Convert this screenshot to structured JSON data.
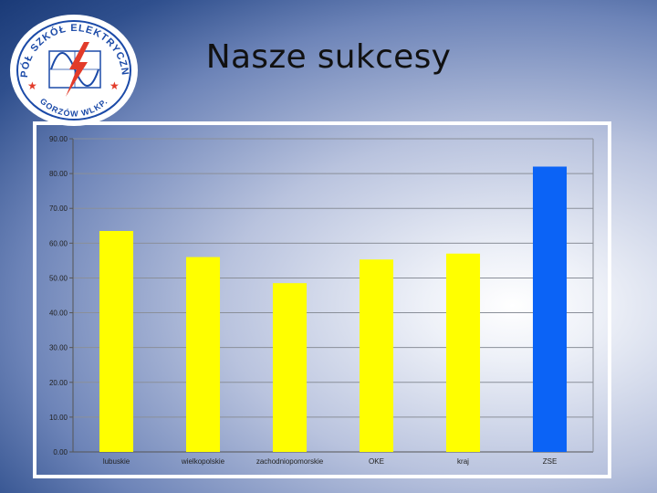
{
  "slide": {
    "title": "Nasze sukcesy",
    "logo_text": "ZESPÓŁ SZKÓŁ ELEKTRYCZNYCH",
    "logo_subtext": "GORZÓW WLKP."
  },
  "chart_data": {
    "type": "bar",
    "title": "",
    "xlabel": "",
    "ylabel": "",
    "categories": [
      "lubuskie",
      "wielkopolskie",
      "zachodniopomorskie",
      "OKE",
      "kraj",
      "ZSE"
    ],
    "values": [
      63.5,
      56,
      48.5,
      55.3,
      57,
      82
    ],
    "colors": [
      "#ffff00",
      "#ffff00",
      "#ffff00",
      "#ffff00",
      "#ffff00",
      "#0b63f6"
    ],
    "ylim": [
      0,
      90
    ],
    "yticks": [
      "0.00",
      "10.00",
      "20.00",
      "30.00",
      "40.00",
      "50.00",
      "60.00",
      "70.00",
      "80.00",
      "90.00"
    ],
    "grid": true,
    "legend": "none"
  }
}
